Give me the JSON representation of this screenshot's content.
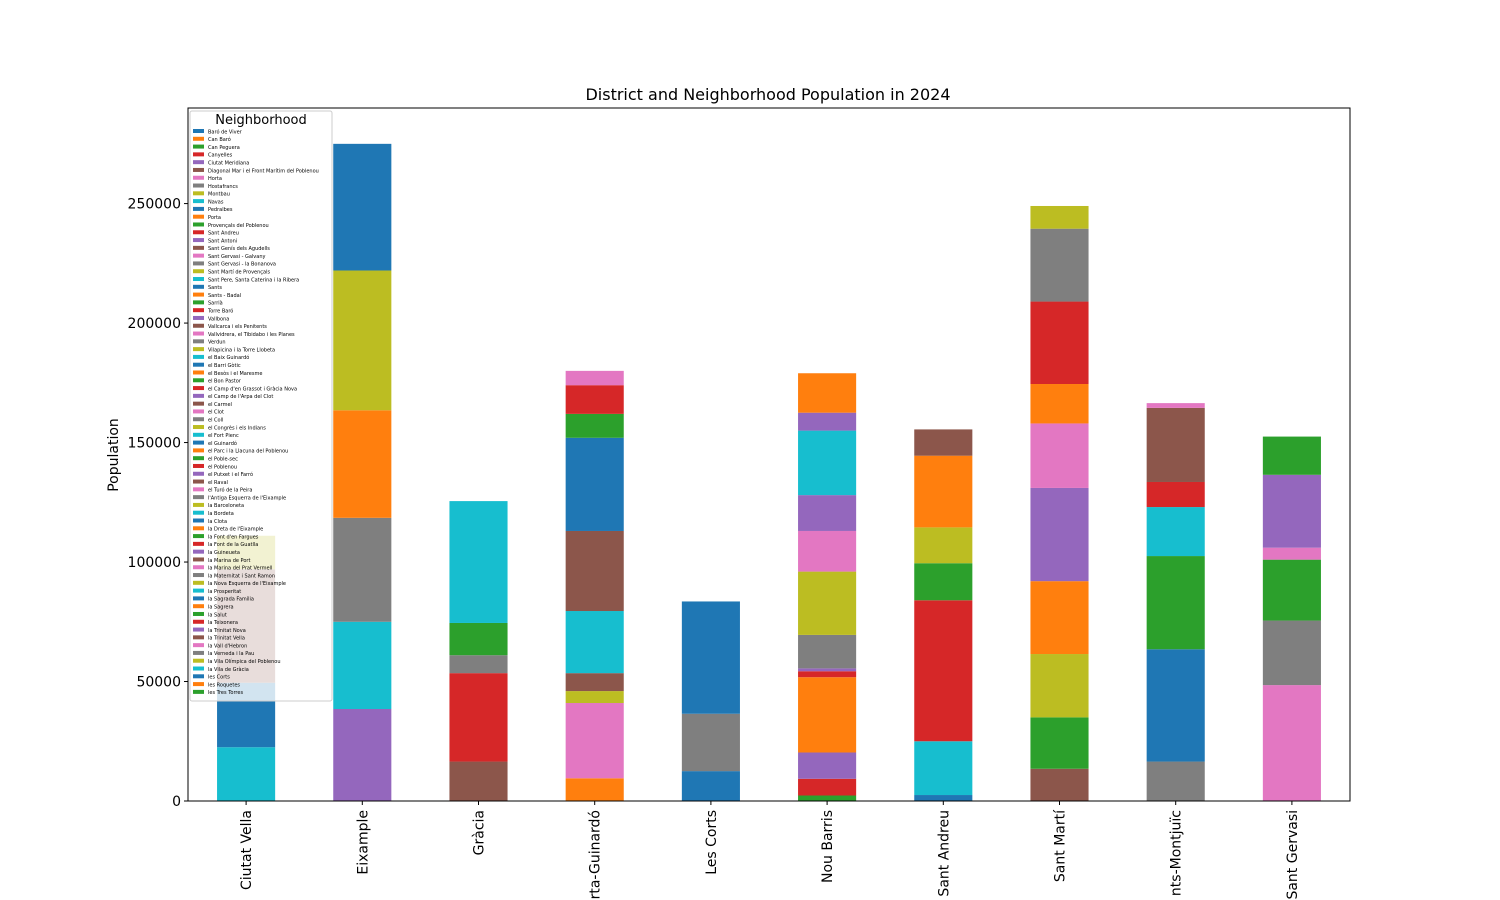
{
  "chart_data": {
    "type": "bar",
    "stacked": true,
    "title": "District and Neighborhood Population in 2024",
    "xlabel": "",
    "ylabel": "Population",
    "ylim": [
      0,
      290000
    ],
    "yticks": [
      0,
      50000,
      100000,
      150000,
      200000,
      250000
    ],
    "grid": false,
    "legend": {
      "title": "Neighborhood",
      "placement": "top-left"
    },
    "categories": [
      "Ciutat Vella",
      "Eixample",
      "Gràcia",
      "Horta-Guinardó",
      "Les Corts",
      "Nou Barris",
      "Sant Andreu",
      "Sant Martí",
      "Sants-Montjuïc",
      "Sarrià-Sant Gervasi"
    ],
    "category_labels": [
      "Ciutat Vella",
      "Eixample",
      "Gràcia",
      "rta-Guinardó",
      "Les Corts",
      "Nou Barris",
      "Sant Andreu",
      "Sant Martí",
      "nts-Montjuïc",
      "Sant Gervasi"
    ],
    "series": [
      {
        "name": "Baró de Viver",
        "color": "#1f77b4",
        "values": [
          0,
          0,
          0,
          0,
          0,
          0,
          2500,
          0,
          0,
          0
        ]
      },
      {
        "name": "Can Baró",
        "color": "#ff7f0e",
        "values": [
          0,
          0,
          0,
          9500,
          0,
          0,
          0,
          0,
          0,
          0
        ]
      },
      {
        "name": "Can Peguera",
        "color": "#2ca02c",
        "values": [
          0,
          0,
          0,
          0,
          0,
          2300,
          0,
          0,
          0,
          0
        ]
      },
      {
        "name": "Canyelles",
        "color": "#d62728",
        "values": [
          0,
          0,
          0,
          0,
          0,
          7000,
          0,
          0,
          0,
          0
        ]
      },
      {
        "name": "Ciutat Meridiana",
        "color": "#9467bd",
        "values": [
          0,
          0,
          0,
          0,
          0,
          11000,
          0,
          0,
          0,
          0
        ]
      },
      {
        "name": "Diagonal Mar i el Front Marítim del Poblenou",
        "color": "#8c564b",
        "values": [
          0,
          0,
          0,
          0,
          0,
          0,
          0,
          13500,
          0,
          0
        ]
      },
      {
        "name": "Horta",
        "color": "#e377c2",
        "values": [
          0,
          0,
          0,
          31500,
          0,
          0,
          0,
          0,
          0,
          0
        ]
      },
      {
        "name": "Hostafrancs",
        "color": "#7f7f7f",
        "values": [
          0,
          0,
          0,
          0,
          0,
          0,
          0,
          0,
          16500,
          0
        ]
      },
      {
        "name": "Montbau",
        "color": "#bcbd22",
        "values": [
          0,
          0,
          0,
          5000,
          0,
          0,
          0,
          0,
          0,
          0
        ]
      },
      {
        "name": "Navas",
        "color": "#17becf",
        "values": [
          0,
          0,
          0,
          0,
          0,
          0,
          22500,
          0,
          0,
          0
        ]
      },
      {
        "name": "Pedralbes",
        "color": "#1f77b4",
        "values": [
          0,
          0,
          0,
          0,
          12500,
          0,
          0,
          0,
          0,
          0
        ]
      },
      {
        "name": "Porta",
        "color": "#ff7f0e",
        "values": [
          0,
          0,
          0,
          0,
          0,
          31500,
          0,
          0,
          0,
          0
        ]
      },
      {
        "name": "Provençals del Poblenou",
        "color": "#2ca02c",
        "values": [
          0,
          0,
          0,
          0,
          0,
          0,
          0,
          21500,
          0,
          0
        ]
      },
      {
        "name": "Sant Andreu",
        "color": "#d62728",
        "values": [
          0,
          0,
          0,
          0,
          0,
          0,
          59000,
          0,
          0,
          0
        ]
      },
      {
        "name": "Sant Antoni",
        "color": "#9467bd",
        "values": [
          0,
          38500,
          0,
          0,
          0,
          0,
          0,
          0,
          0,
          0
        ]
      },
      {
        "name": "Sant Genís dels Agudells",
        "color": "#8c564b",
        "values": [
          0,
          0,
          0,
          7500,
          0,
          0,
          0,
          0,
          0,
          0
        ]
      },
      {
        "name": "Sant Gervasi - Galvany",
        "color": "#e377c2",
        "values": [
          0,
          0,
          0,
          0,
          0,
          0,
          0,
          0,
          0,
          48500
        ]
      },
      {
        "name": "Sant Gervasi - la Bonanova",
        "color": "#7f7f7f",
        "values": [
          0,
          0,
          0,
          0,
          0,
          0,
          0,
          0,
          0,
          27000
        ]
      },
      {
        "name": "Sant Martí de Provençals",
        "color": "#bcbd22",
        "values": [
          0,
          0,
          0,
          0,
          0,
          0,
          0,
          26500,
          0,
          0
        ]
      },
      {
        "name": "Sant Pere, Santa Caterina i la Ribera",
        "color": "#17becf",
        "values": [
          22500,
          0,
          0,
          0,
          0,
          0,
          0,
          0,
          0,
          0
        ]
      },
      {
        "name": "Sants",
        "color": "#1f77b4",
        "values": [
          0,
          0,
          0,
          0,
          0,
          0,
          0,
          0,
          47000,
          0
        ]
      },
      {
        "name": "Sants - Badal",
        "color": "#ff7f0e",
        "values": [
          0,
          0,
          0,
          0,
          0,
          0,
          0,
          0,
          0,
          0
        ]
      },
      {
        "name": "Sarrià",
        "color": "#2ca02c",
        "values": [
          0,
          0,
          0,
          0,
          0,
          0,
          0,
          0,
          0,
          25500
        ]
      },
      {
        "name": "Torre Baró",
        "color": "#d62728",
        "values": [
          0,
          0,
          0,
          0,
          0,
          2500,
          0,
          0,
          0,
          0
        ]
      },
      {
        "name": "Vallbona",
        "color": "#9467bd",
        "values": [
          0,
          0,
          0,
          0,
          0,
          1200,
          0,
          0,
          0,
          0
        ]
      },
      {
        "name": "Vallcarca i els Penitents",
        "color": "#8c564b",
        "values": [
          0,
          0,
          16500,
          0,
          0,
          0,
          0,
          0,
          0,
          0
        ]
      },
      {
        "name": "Vallvidrera, el Tibidabo i les Planes",
        "color": "#e377c2",
        "values": [
          0,
          0,
          0,
          0,
          0,
          0,
          0,
          0,
          0,
          5000
        ]
      },
      {
        "name": "Verdun",
        "color": "#7f7f7f",
        "values": [
          0,
          0,
          0,
          0,
          0,
          14000,
          0,
          0,
          0,
          0
        ]
      },
      {
        "name": "Vilapicina i la Torre Llobeta",
        "color": "#bcbd22",
        "values": [
          0,
          0,
          0,
          0,
          0,
          26500,
          0,
          0,
          0,
          0
        ]
      },
      {
        "name": "el Baix Guinardó",
        "color": "#17becf",
        "values": [
          0,
          0,
          0,
          26000,
          0,
          0,
          0,
          0,
          0,
          0
        ]
      },
      {
        "name": "el Barri Gòtic",
        "color": "#1f77b4",
        "values": [
          27000,
          0,
          0,
          0,
          0,
          0,
          0,
          0,
          0,
          0
        ]
      },
      {
        "name": "el Besòs i el Maresme",
        "color": "#ff7f0e",
        "values": [
          0,
          0,
          0,
          0,
          0,
          0,
          0,
          30500,
          0,
          0
        ]
      },
      {
        "name": "el Bon Pastor",
        "color": "#2ca02c",
        "values": [
          0,
          0,
          0,
          0,
          0,
          0,
          15500,
          0,
          0,
          0
        ]
      },
      {
        "name": "el Camp d'en Grassot i Gràcia Nova",
        "color": "#d62728",
        "values": [
          0,
          0,
          37000,
          0,
          0,
          0,
          0,
          0,
          0,
          0
        ]
      },
      {
        "name": "el Camp de l'Arpa del Clot",
        "color": "#9467bd",
        "values": [
          0,
          0,
          0,
          0,
          0,
          0,
          0,
          39000,
          0,
          0
        ]
      },
      {
        "name": "el Carmel",
        "color": "#8c564b",
        "values": [
          0,
          0,
          0,
          33500,
          0,
          0,
          0,
          0,
          0,
          0
        ]
      },
      {
        "name": "el Clot",
        "color": "#e377c2",
        "values": [
          0,
          0,
          0,
          0,
          0,
          0,
          0,
          27000,
          0,
          0
        ]
      },
      {
        "name": "el Coll",
        "color": "#7f7f7f",
        "values": [
          0,
          0,
          7500,
          0,
          0,
          0,
          0,
          0,
          0,
          0
        ]
      },
      {
        "name": "el Congrès i els Indians",
        "color": "#bcbd22",
        "values": [
          0,
          0,
          0,
          0,
          0,
          0,
          15000,
          0,
          0,
          0
        ]
      },
      {
        "name": "el Fort Pienc",
        "color": "#17becf",
        "values": [
          0,
          36500,
          0,
          0,
          0,
          0,
          0,
          0,
          0,
          0
        ]
      },
      {
        "name": "el Guinardó",
        "color": "#1f77b4",
        "values": [
          0,
          0,
          0,
          39000,
          0,
          0,
          0,
          0,
          0,
          0
        ]
      },
      {
        "name": "el Parc i la Llacuna del Poblenou",
        "color": "#ff7f0e",
        "values": [
          0,
          0,
          0,
          0,
          0,
          0,
          0,
          16500,
          0,
          0
        ]
      },
      {
        "name": "el Poble-sec",
        "color": "#2ca02c",
        "values": [
          0,
          0,
          0,
          0,
          0,
          0,
          0,
          0,
          39000,
          0
        ]
      },
      {
        "name": "el Poblenou",
        "color": "#d62728",
        "values": [
          0,
          0,
          0,
          0,
          0,
          0,
          0,
          34500,
          0,
          0
        ]
      },
      {
        "name": "el Putxet i el Farró",
        "color": "#9467bd",
        "values": [
          0,
          0,
          0,
          0,
          0,
          0,
          0,
          0,
          0,
          30500
        ]
      },
      {
        "name": "el Raval",
        "color": "#8c564b",
        "values": [
          47500,
          0,
          0,
          0,
          0,
          0,
          0,
          0,
          0,
          0
        ]
      },
      {
        "name": "el Turó de la Peira",
        "color": "#e377c2",
        "values": [
          0,
          0,
          0,
          0,
          0,
          17000,
          0,
          0,
          0,
          0
        ]
      },
      {
        "name": "l'Antiga Esquerra de l'Eixample",
        "color": "#7f7f7f",
        "values": [
          0,
          43500,
          0,
          0,
          0,
          0,
          0,
          0,
          0,
          0
        ]
      },
      {
        "name": "la Barceloneta",
        "color": "#bcbd22",
        "values": [
          14000,
          0,
          0,
          0,
          0,
          0,
          0,
          0,
          0,
          0
        ]
      },
      {
        "name": "la Bordeta",
        "color": "#17becf",
        "values": [
          0,
          0,
          0,
          0,
          0,
          0,
          0,
          0,
          20500,
          0
        ]
      },
      {
        "name": "la Clota",
        "color": "#1f77b4",
        "values": [
          0,
          0,
          0,
          0,
          0,
          0,
          0,
          0,
          0,
          0
        ]
      },
      {
        "name": "la Dreta de l'Eixample",
        "color": "#ff7f0e",
        "values": [
          0,
          45000,
          0,
          0,
          0,
          0,
          0,
          0,
          0,
          0
        ]
      },
      {
        "name": "la Font d'en Fargues",
        "color": "#2ca02c",
        "values": [
          0,
          0,
          0,
          10000,
          0,
          0,
          0,
          0,
          0,
          0
        ]
      },
      {
        "name": "la Font de la Guatlla",
        "color": "#d62728",
        "values": [
          0,
          0,
          0,
          0,
          0,
          0,
          0,
          0,
          10500,
          0
        ]
      },
      {
        "name": "la Guineueta",
        "color": "#9467bd",
        "values": [
          0,
          0,
          0,
          0,
          0,
          15000,
          0,
          0,
          0,
          0
        ]
      },
      {
        "name": "la Marina de Port",
        "color": "#8c564b",
        "values": [
          0,
          0,
          0,
          0,
          0,
          0,
          0,
          0,
          31000,
          0
        ]
      },
      {
        "name": "la Marina del Prat Vermell",
        "color": "#e377c2",
        "values": [
          0,
          0,
          0,
          0,
          0,
          0,
          0,
          0,
          2000,
          0
        ]
      },
      {
        "name": "la Maternitat i Sant Ramon",
        "color": "#7f7f7f",
        "values": [
          0,
          0,
          0,
          0,
          24000,
          0,
          0,
          0,
          0,
          0
        ]
      },
      {
        "name": "la Nova Esquerra de l'Eixample",
        "color": "#bcbd22",
        "values": [
          0,
          58500,
          0,
          0,
          0,
          0,
          0,
          0,
          0,
          0
        ]
      },
      {
        "name": "la Prosperitat",
        "color": "#17becf",
        "values": [
          0,
          0,
          0,
          0,
          0,
          27000,
          0,
          0,
          0,
          0
        ]
      },
      {
        "name": "la Sagrada Família",
        "color": "#1f77b4",
        "values": [
          0,
          53000,
          0,
          0,
          0,
          0,
          0,
          0,
          0,
          0
        ]
      },
      {
        "name": "la Sagrera",
        "color": "#ff7f0e",
        "values": [
          0,
          0,
          0,
          0,
          0,
          0,
          30000,
          0,
          0,
          0
        ]
      },
      {
        "name": "la Salut",
        "color": "#2ca02c",
        "values": [
          0,
          0,
          13500,
          0,
          0,
          0,
          0,
          0,
          0,
          0
        ]
      },
      {
        "name": "la Teixonera",
        "color": "#d62728",
        "values": [
          0,
          0,
          0,
          12000,
          0,
          0,
          0,
          0,
          0,
          0
        ]
      },
      {
        "name": "la Trinitat Nova",
        "color": "#9467bd",
        "values": [
          0,
          0,
          0,
          0,
          0,
          7500,
          0,
          0,
          0,
          0
        ]
      },
      {
        "name": "la Trinitat Vella",
        "color": "#8c564b",
        "values": [
          0,
          0,
          0,
          0,
          0,
          0,
          11000,
          0,
          0,
          0
        ]
      },
      {
        "name": "la Vall d'Hebron",
        "color": "#e377c2",
        "values": [
          0,
          0,
          0,
          6000,
          0,
          0,
          0,
          0,
          0,
          0
        ]
      },
      {
        "name": "la Verneda i la Pau",
        "color": "#7f7f7f",
        "values": [
          0,
          0,
          0,
          0,
          0,
          0,
          0,
          30500,
          0,
          0
        ]
      },
      {
        "name": "la Vila Olímpica del Poblenou",
        "color": "#bcbd22",
        "values": [
          0,
          0,
          0,
          0,
          0,
          0,
          0,
          9500,
          0,
          0
        ]
      },
      {
        "name": "la Vila de Gràcia",
        "color": "#17becf",
        "values": [
          0,
          0,
          51000,
          0,
          0,
          0,
          0,
          0,
          0,
          0
        ]
      },
      {
        "name": "les Corts",
        "color": "#1f77b4",
        "values": [
          0,
          0,
          0,
          0,
          47000,
          0,
          0,
          0,
          0,
          0
        ]
      },
      {
        "name": "les Roquetes",
        "color": "#ff7f0e",
        "values": [
          0,
          0,
          0,
          0,
          0,
          16500,
          0,
          0,
          0,
          0
        ]
      },
      {
        "name": "les Tres Torres",
        "color": "#2ca02c",
        "values": [
          0,
          0,
          0,
          0,
          0,
          0,
          0,
          0,
          0,
          16000
        ]
      }
    ]
  }
}
